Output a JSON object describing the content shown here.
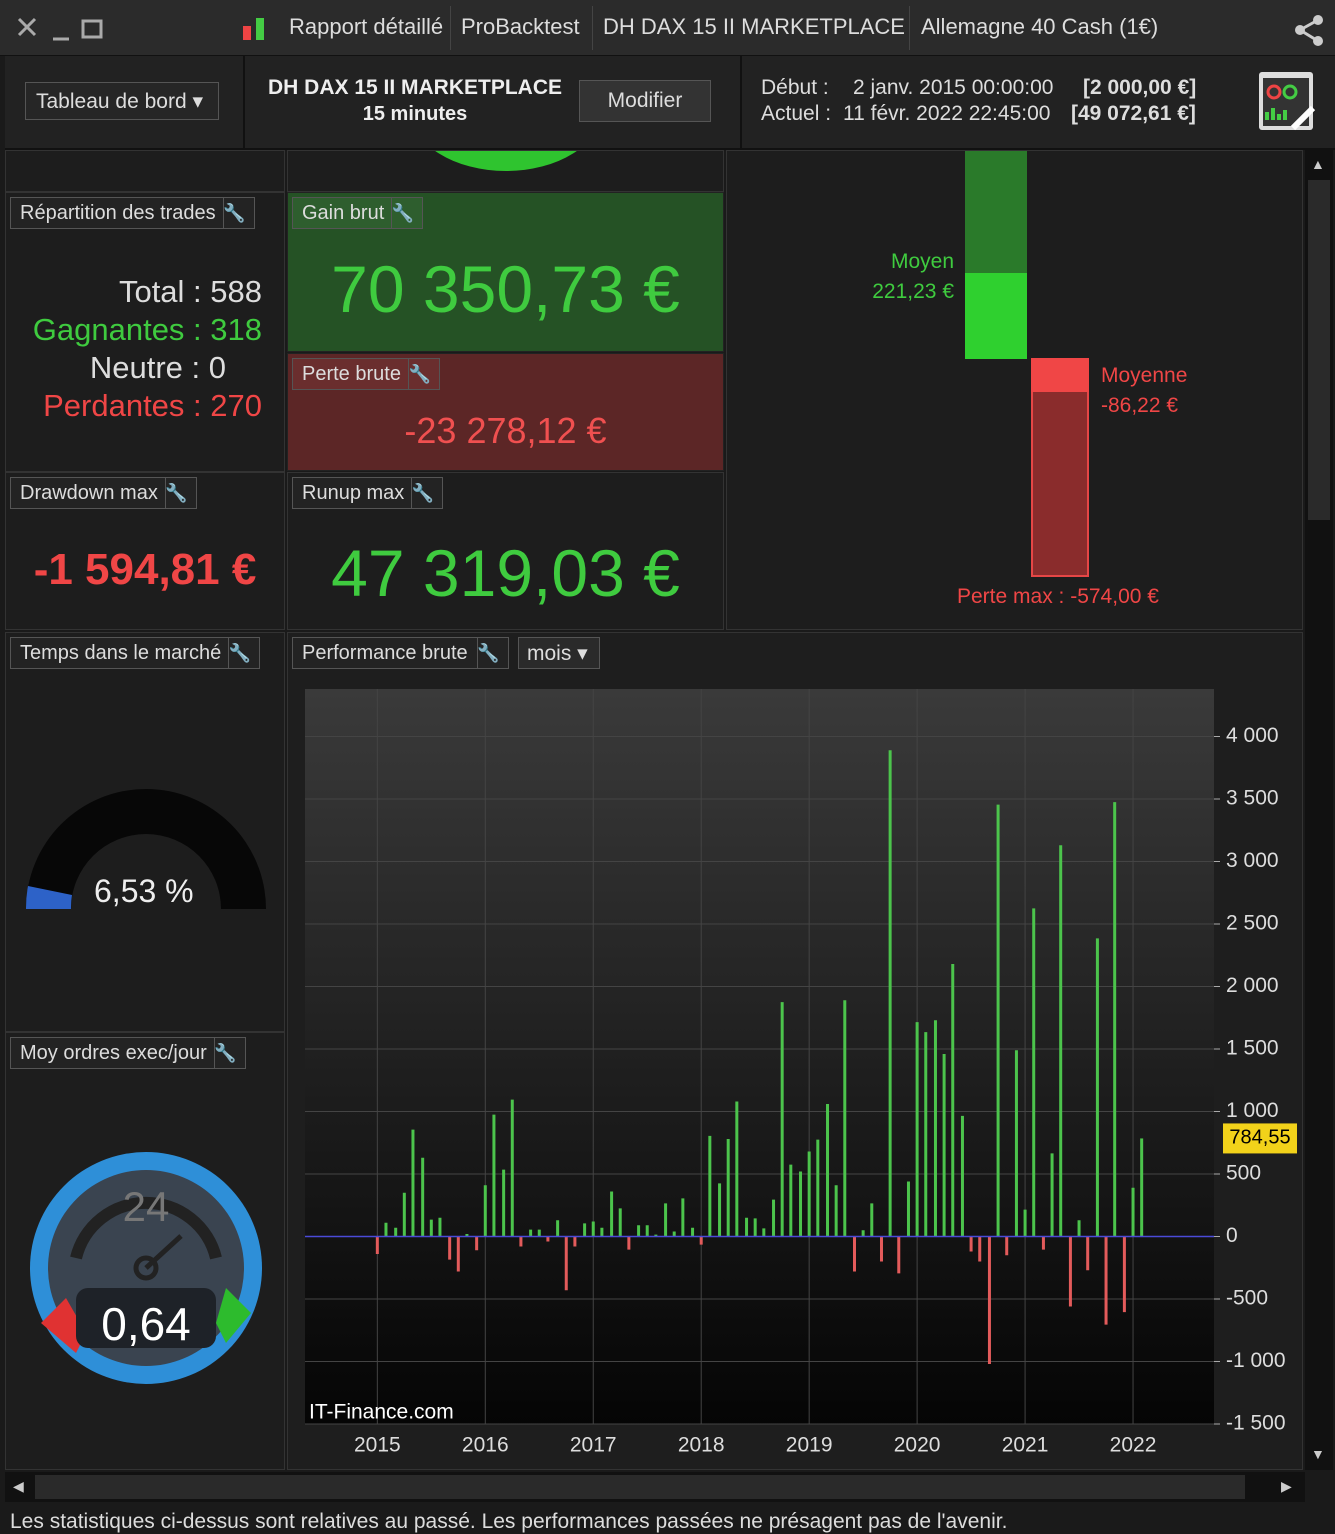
{
  "window": {
    "tabs": [
      "Rapport détaillé",
      "ProBacktest",
      "DH DAX 15 II MARKETPLACE",
      "Allemagne 40 Cash (1€)"
    ]
  },
  "header": {
    "dashboard": "Tableau de bord",
    "system": "DH DAX 15 II MARKETPLACE",
    "timeframe": "15 minutes",
    "edit": "Modifier",
    "start_label": "Début :",
    "start_date": "2 janv. 2015 00:00:00",
    "start_capital": "[2 000,00 €]",
    "current_label": "Actuel :",
    "current_date": "11 févr. 2022 22:45:00",
    "current_capital": "[49 072,61 €]"
  },
  "trades": {
    "title": "Répartition des trades",
    "total": "Total : 588",
    "winners": "Gagnantes : 318",
    "neutral": "Neutre : 0",
    "losers": "Perdantes : 270"
  },
  "gross_gain": {
    "title": "Gain brut",
    "value": "70 350,73 €"
  },
  "gross_loss": {
    "title": "Perte brute",
    "value": "-23 278,12 €"
  },
  "drawdown": {
    "title": "Drawdown max",
    "value": "-1 594,81 €"
  },
  "runup": {
    "title": "Runup max",
    "value": "47 319,03 €"
  },
  "averages": {
    "avg_gain_label": "Moyen",
    "avg_gain": "221,23 €",
    "avg_loss_label": "Moyenne",
    "avg_loss": "-86,22 €",
    "max_loss": "Perte max : -574,00 €"
  },
  "time_in_market": {
    "title": "Temps dans le marché",
    "value": "6,53 %"
  },
  "orders": {
    "title": "Moy ordres exec/jour",
    "clock": "24",
    "value": "0,64"
  },
  "chart_data": {
    "type": "bar",
    "title": "Performance brute",
    "period": "mois",
    "watermark": "IT-Finance.com",
    "positive_color": "#4cc44c",
    "negative_color": "#e35b5b",
    "zero_line_color": "#4a4ad8",
    "x": [
      2015,
      2015.08,
      2015.17,
      2015.25,
      2015.33,
      2015.42,
      2015.5,
      2015.58,
      2015.67,
      2015.75,
      2015.83,
      2015.92,
      2016,
      2016.08,
      2016.17,
      2016.25,
      2016.33,
      2016.42,
      2016.5,
      2016.58,
      2016.67,
      2016.75,
      2016.83,
      2016.92,
      2017,
      2017.08,
      2017.17,
      2017.25,
      2017.33,
      2017.42,
      2017.5,
      2017.58,
      2017.67,
      2017.75,
      2017.83,
      2017.92,
      2018,
      2018.08,
      2018.17,
      2018.25,
      2018.33,
      2018.42,
      2018.5,
      2018.58,
      2018.67,
      2018.75,
      2018.83,
      2018.92,
      2019,
      2019.08,
      2019.17,
      2019.25,
      2019.33,
      2019.42,
      2019.5,
      2019.58,
      2019.67,
      2019.75,
      2019.83,
      2019.92,
      2020,
      2020.08,
      2020.17,
      2020.25,
      2020.33,
      2020.42,
      2020.5,
      2020.58,
      2020.67,
      2020.75,
      2020.83,
      2020.92,
      2021,
      2021.08,
      2021.17,
      2021.25,
      2021.33,
      2021.42,
      2021.5,
      2021.58,
      2021.67,
      2021.75,
      2021.83,
      2021.92,
      2022,
      2022.08
    ],
    "values": [
      -140,
      110,
      70,
      350,
      855,
      630,
      135,
      150,
      -185,
      -280,
      20,
      -110,
      410,
      975,
      535,
      1095,
      -80,
      55,
      55,
      -40,
      130,
      -430,
      -80,
      105,
      120,
      70,
      360,
      225,
      -105,
      90,
      90,
      15,
      265,
      40,
      305,
      70,
      -65,
      805,
      425,
      780,
      1080,
      150,
      145,
      65,
      295,
      1875,
      575,
      520,
      680,
      775,
      1060,
      410,
      1890,
      -280,
      50,
      265,
      -200,
      3890,
      -295,
      440,
      1715,
      1635,
      1730,
      1460,
      2180,
      965,
      -120,
      -200,
      -1020,
      3455,
      -150,
      1490,
      215,
      2625,
      -105,
      665,
      3130,
      -560,
      130,
      -270,
      2385,
      -705,
      3475,
      -605,
      390,
      784.55
    ],
    "last_label": "784,55",
    "xlim": [
      2014.33,
      2022.75
    ],
    "ylim": [
      -1500,
      4380
    ],
    "xticks": [
      2015,
      2016,
      2017,
      2018,
      2019,
      2020,
      2021,
      2022
    ],
    "yticks": [
      {
        "value": -1500,
        "label": "-1 500"
      },
      {
        "value": -1000,
        "label": "-1 000"
      },
      -500,
      0,
      500,
      {
        "value": 1000,
        "label": "1 000"
      },
      {
        "value": 1500,
        "label": "1 500"
      },
      {
        "value": 2000,
        "label": "2 000"
      },
      {
        "value": 2500,
        "label": "2 500"
      },
      {
        "value": 3000,
        "label": "3 000"
      },
      {
        "value": 3500,
        "label": "3 500"
      },
      {
        "value": 4000,
        "label": "4 000"
      }
    ],
    "grid": true
  },
  "footer": "Les statistiques ci-dessus sont relatives au passé. Les performances passées ne présagent pas de l'avenir."
}
